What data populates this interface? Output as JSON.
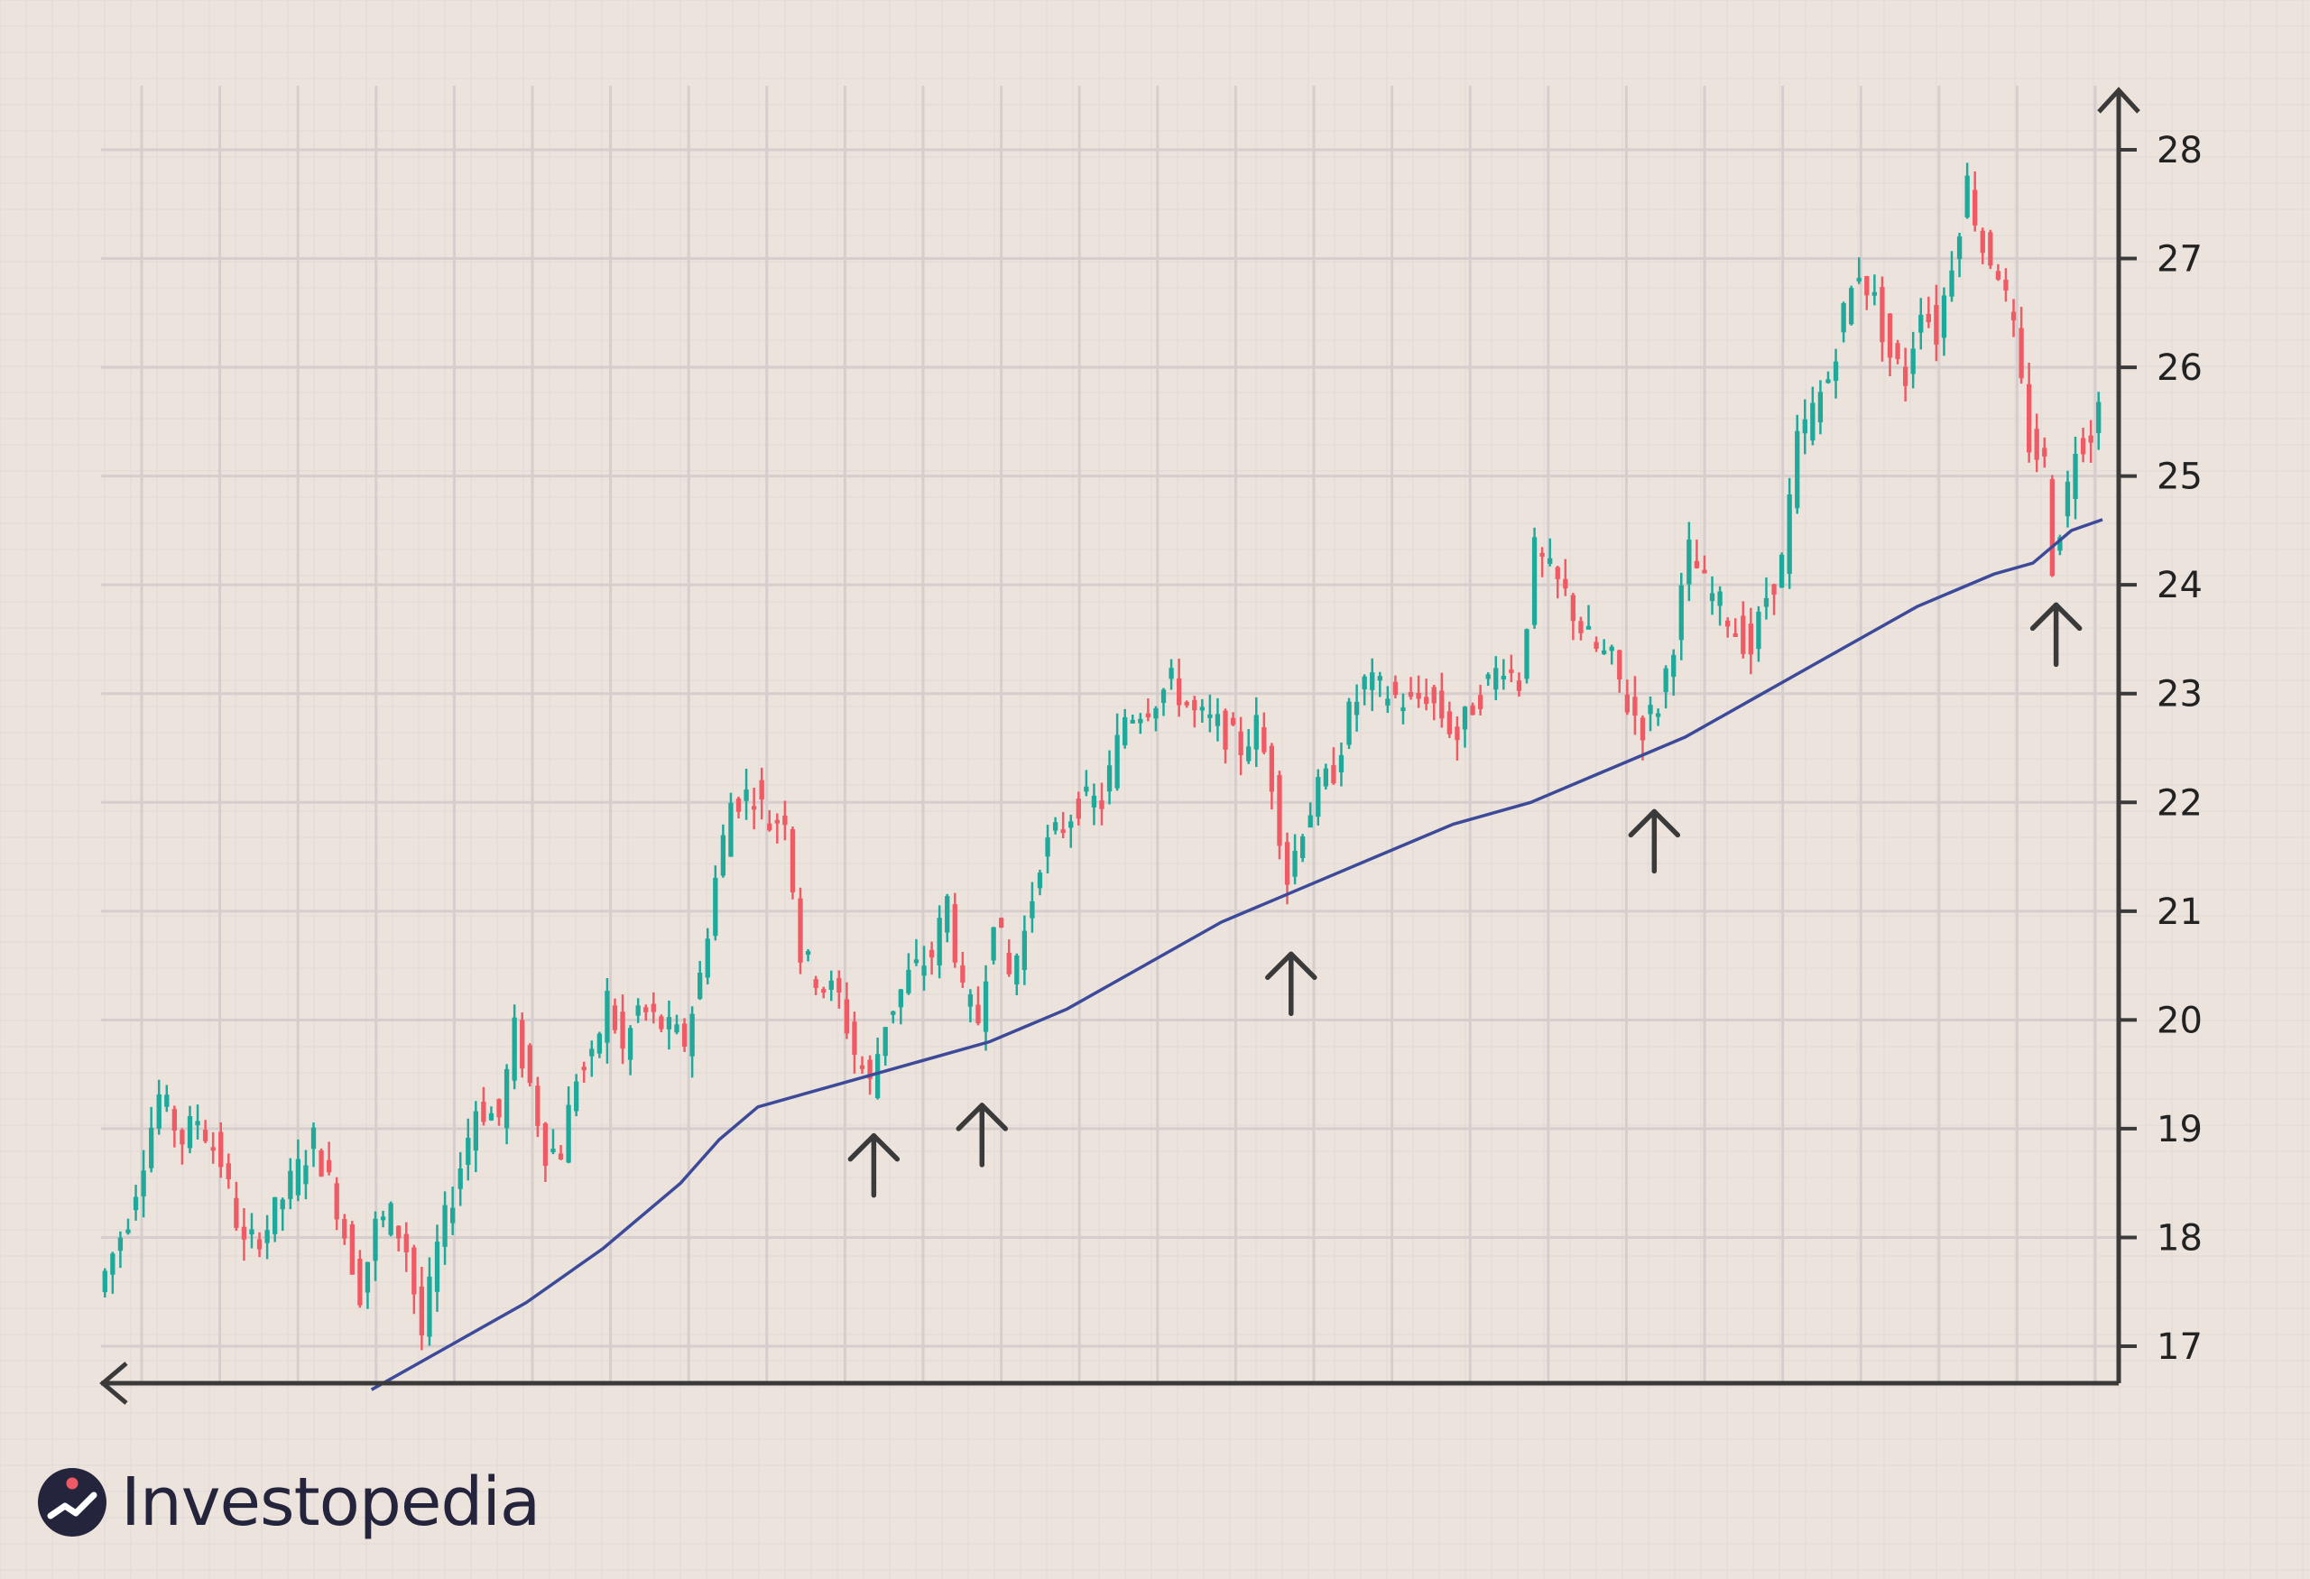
{
  "brand": {
    "name": "Investopedia",
    "logo_icon": "investopedia-logo-icon"
  },
  "colors": {
    "background": "#ece4dc",
    "grid_major": "#d6cdcd",
    "grid_minor": "#e3dbd6",
    "axis": "#3a3a3a",
    "up": "#1fa99a",
    "down": "#ef5b65",
    "moving_average": "#3d4a99",
    "arrow": "#3a3a3a"
  },
  "chart_data": {
    "type": "candlestick",
    "title": "",
    "xlabel": "",
    "ylabel": "",
    "ylim": [
      16.6,
      28.6
    ],
    "y_ticks": [
      17,
      18,
      19,
      20,
      21,
      22,
      23,
      24,
      25,
      26,
      27,
      28
    ],
    "x_range": [
      0,
      259
    ],
    "grid": true,
    "y_axis_position": "right",
    "price_path": [
      [
        0,
        17.5
      ],
      [
        4,
        18.2
      ],
      [
        8,
        19.3
      ],
      [
        11,
        18.9
      ],
      [
        13,
        19.1
      ],
      [
        16,
        18.7
      ],
      [
        19,
        17.9
      ],
      [
        22,
        18.1
      ],
      [
        25,
        18.5
      ],
      [
        28,
        18.9
      ],
      [
        31,
        18.3
      ],
      [
        34,
        17.5
      ],
      [
        36,
        18.1
      ],
      [
        38,
        18.2
      ],
      [
        40,
        17.9
      ],
      [
        42,
        17.1
      ],
      [
        44,
        17.9
      ],
      [
        46,
        18.4
      ],
      [
        49,
        19.2
      ],
      [
        52,
        19.1
      ],
      [
        54,
        19.9
      ],
      [
        56,
        19.4
      ],
      [
        58,
        18.8
      ],
      [
        60,
        18.8
      ],
      [
        62,
        19.5
      ],
      [
        64,
        19.6
      ],
      [
        66,
        20.2
      ],
      [
        68,
        19.7
      ],
      [
        70,
        20.1
      ],
      [
        72,
        20.0
      ],
      [
        74,
        19.9
      ],
      [
        76,
        19.8
      ],
      [
        78,
        20.4
      ],
      [
        80,
        21.3
      ],
      [
        82,
        22.0
      ],
      [
        85,
        22.1
      ],
      [
        87,
        21.8
      ],
      [
        89,
        21.9
      ],
      [
        91,
        20.6
      ],
      [
        93,
        20.4
      ],
      [
        96,
        20.2
      ],
      [
        98,
        19.7
      ],
      [
        100,
        19.4
      ],
      [
        102,
        20.0
      ],
      [
        105,
        20.4
      ],
      [
        108,
        20.6
      ],
      [
        110,
        21.1
      ],
      [
        112,
        20.2
      ],
      [
        114,
        20.0
      ],
      [
        116,
        21.0
      ],
      [
        118,
        20.4
      ],
      [
        120,
        20.8
      ],
      [
        122,
        21.5
      ],
      [
        125,
        21.8
      ],
      [
        127,
        22.0
      ],
      [
        130,
        22.0
      ],
      [
        133,
        22.8
      ],
      [
        136,
        22.9
      ],
      [
        139,
        23.1
      ],
      [
        142,
        22.8
      ],
      [
        145,
        22.7
      ],
      [
        148,
        22.5
      ],
      [
        150,
        22.7
      ],
      [
        152,
        22.2
      ],
      [
        154,
        21.3
      ],
      [
        156,
        21.8
      ],
      [
        158,
        22.1
      ],
      [
        160,
        22.3
      ],
      [
        162,
        22.8
      ],
      [
        164,
        23.1
      ],
      [
        167,
        23.0
      ],
      [
        170,
        22.9
      ],
      [
        172,
        23.0
      ],
      [
        174,
        22.8
      ],
      [
        176,
        22.6
      ],
      [
        178,
        22.9
      ],
      [
        180,
        23.1
      ],
      [
        182,
        23.3
      ],
      [
        184,
        23.1
      ],
      [
        186,
        24.3
      ],
      [
        188,
        24.1
      ],
      [
        190,
        23.9
      ],
      [
        192,
        23.6
      ],
      [
        194,
        23.4
      ],
      [
        196,
        23.3
      ],
      [
        198,
        22.9
      ],
      [
        200,
        22.7
      ],
      [
        202,
        22.9
      ],
      [
        204,
        23.5
      ],
      [
        206,
        24.3
      ],
      [
        208,
        24.0
      ],
      [
        210,
        23.8
      ],
      [
        212,
        23.6
      ],
      [
        214,
        23.4
      ],
      [
        216,
        23.9
      ],
      [
        218,
        24.2
      ],
      [
        220,
        25.3
      ],
      [
        222,
        25.6
      ],
      [
        224,
        25.9
      ],
      [
        226,
        26.5
      ],
      [
        228,
        26.9
      ],
      [
        230,
        26.6
      ],
      [
        232,
        26.1
      ],
      [
        234,
        25.9
      ],
      [
        236,
        26.6
      ],
      [
        238,
        26.3
      ],
      [
        240,
        27.0
      ],
      [
        242,
        27.7
      ],
      [
        244,
        27.1
      ],
      [
        246,
        26.9
      ],
      [
        248,
        26.3
      ],
      [
        250,
        25.3
      ],
      [
        252,
        25.1
      ],
      [
        253,
        24.2
      ],
      [
        255,
        24.9
      ],
      [
        256,
        25.3
      ],
      [
        258,
        25.4
      ],
      [
        259,
        25.8
      ]
    ],
    "moving_average": [
      [
        35,
        16.6
      ],
      [
        45,
        17.0
      ],
      [
        55,
        17.4
      ],
      [
        65,
        17.9
      ],
      [
        75,
        18.5
      ],
      [
        80,
        18.9
      ],
      [
        85,
        19.2
      ],
      [
        95,
        19.4
      ],
      [
        105,
        19.6
      ],
      [
        115,
        19.8
      ],
      [
        125,
        20.1
      ],
      [
        135,
        20.5
      ],
      [
        145,
        20.9
      ],
      [
        155,
        21.2
      ],
      [
        165,
        21.5
      ],
      [
        175,
        21.8
      ],
      [
        185,
        22.0
      ],
      [
        195,
        22.3
      ],
      [
        205,
        22.6
      ],
      [
        215,
        23.0
      ],
      [
        225,
        23.4
      ],
      [
        235,
        23.8
      ],
      [
        245,
        24.1
      ],
      [
        250,
        24.2
      ],
      [
        255,
        24.5
      ],
      [
        259,
        24.6
      ]
    ],
    "series": [
      {
        "name": "",
        "type": "candlestick"
      },
      {
        "name": "",
        "type": "line"
      }
    ],
    "annotations": [
      {
        "type": "up-arrow",
        "x": 100
      },
      {
        "type": "up-arrow",
        "x": 114
      },
      {
        "type": "up-arrow",
        "x": 154
      },
      {
        "type": "up-arrow",
        "x": 201
      },
      {
        "type": "up-arrow",
        "x": 253
      }
    ]
  }
}
